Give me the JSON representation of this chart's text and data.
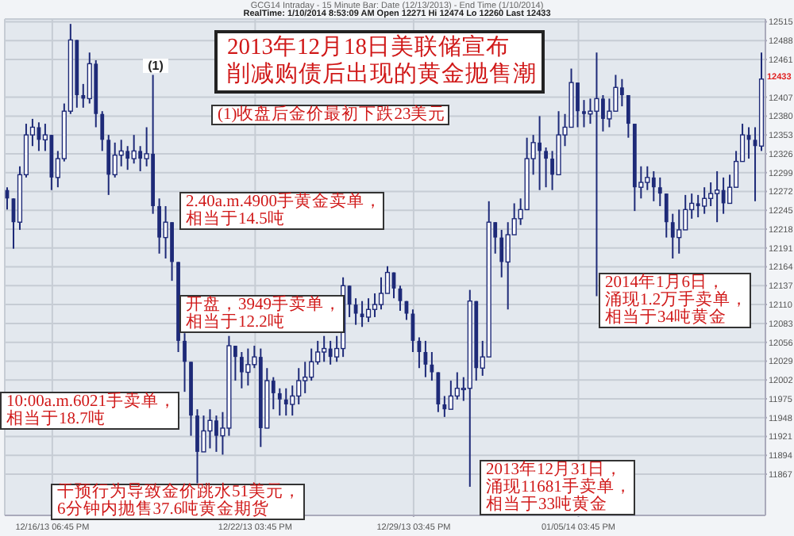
{
  "chart_data": {
    "type": "candlestick",
    "title": "2013年12月18日美联储宣布",
    "subtitle": "削减购债后出现的黄金抛售潮",
    "annotations": [
      "GCG14 Intraday - 15 Minute Bar: Date (12/13/2013) - End Time (1/10/2014)",
      "RealTime: 1/10/2014 8:53:09 AM Open 12271 Hi 12474 Lo 12260 Last 12433",
      {
        "text": "(1)",
        "y": 12439
      },
      "(1)收盘后金价最初下跌23美元",
      "2.40a.m.4900手黄金卖单，相当于14.5吨",
      "开盘，3949手卖单，相当于12.2吨",
      "10:00a.m.6021手卖单，相当于18.7吨",
      "干预行为导致金价跳水51美元，6分钟内抛售37.6吨黄金期货",
      "2013年12月31日，涌现11681手卖单，相当于33吨黄金",
      "2014年1月6日，涌现1.2万手卖单，相当于34吨黄金",
      {
        "text": "12433",
        "y": 12433
      }
    ],
    "color": "#1e2a78",
    "categories": [
      null,
      null,
      null,
      null,
      null,
      null,
      null,
      "12/16/13 06:45 PM",
      null,
      null,
      null,
      null,
      null,
      null,
      null,
      null,
      null,
      null,
      null,
      null,
      null,
      null,
      null,
      null,
      null,
      null,
      null,
      null,
      null,
      null,
      null,
      null,
      null,
      null,
      null,
      null,
      null,
      null,
      null,
      "12/22/13 03:45 PM",
      null,
      null,
      null,
      null,
      null,
      null,
      null,
      null,
      null,
      null,
      null,
      null,
      null,
      null,
      null,
      null,
      null,
      null,
      null,
      null,
      null,
      null,
      null,
      null,
      "12/29/13 03:45 PM",
      null,
      null,
      null,
      null,
      null,
      null,
      null,
      null,
      null,
      null,
      null,
      null,
      null,
      null,
      null,
      null,
      null,
      null,
      null,
      null,
      null,
      null,
      null,
      null,
      null,
      "01/05/14 03:45 PM",
      null,
      null,
      null,
      null,
      null,
      null,
      null,
      null,
      null,
      null,
      null,
      null,
      null,
      null,
      null,
      null,
      null,
      null,
      null,
      null,
      null,
      null,
      null,
      null,
      null,
      null,
      null,
      null,
      null
    ],
    "ohlc": [
      [
        12274,
        12278,
        12246,
        12262
      ],
      [
        12262,
        12262,
        12190,
        12228
      ],
      [
        12228,
        12308,
        12217,
        12296
      ],
      [
        12296,
        12369,
        12292,
        12353
      ],
      [
        12353,
        12376,
        12337,
        12364
      ],
      [
        12364,
        12371,
        12330,
        12346
      ],
      [
        12346,
        12369,
        12330,
        12353
      ],
      [
        12353,
        12353,
        12274,
        12292
      ],
      [
        12292,
        12330,
        12278,
        12319
      ],
      [
        12319,
        12398,
        12315,
        12387
      ],
      [
        12387,
        12512,
        12383,
        12489
      ],
      [
        12489,
        12489,
        12392,
        12410
      ],
      [
        12410,
        12426,
        12392,
        12405
      ],
      [
        12405,
        12471,
        12398,
        12455
      ],
      [
        12455,
        12460,
        12364,
        12383
      ],
      [
        12383,
        12387,
        12330,
        12346
      ],
      [
        12346,
        12353,
        12267,
        12296
      ],
      [
        12296,
        12342,
        12292,
        12324
      ],
      [
        12324,
        12346,
        12308,
        12330
      ],
      [
        12330,
        12337,
        12303,
        12319
      ],
      [
        12319,
        12353,
        12312,
        12330
      ],
      [
        12330,
        12337,
        12301,
        12319
      ],
      [
        12319,
        12364,
        12308,
        12326
      ],
      [
        12326,
        12439,
        12240,
        12251
      ],
      [
        12251,
        12262,
        12183,
        12206
      ],
      [
        12206,
        12251,
        12176,
        12228
      ],
      [
        12228,
        12228,
        12144,
        12171
      ],
      [
        12171,
        12171,
        12042,
        12058
      ],
      [
        12058,
        12069,
        11985,
        12028
      ],
      [
        12028,
        12028,
        11922,
        11951
      ],
      [
        11951,
        11960,
        11854,
        11899
      ],
      [
        11899,
        11951,
        11899,
        11929
      ],
      [
        11929,
        11960,
        11904,
        11944
      ],
      [
        11944,
        11951,
        11899,
        11922
      ],
      [
        11922,
        11956,
        11895,
        11933
      ],
      [
        11933,
        12065,
        11922,
        12051
      ],
      [
        12051,
        12051,
        12001,
        12035
      ],
      [
        12035,
        12042,
        11990,
        12013
      ],
      [
        12013,
        12047,
        11994,
        12024
      ],
      [
        12024,
        12051,
        12019,
        12035
      ],
      [
        12035,
        12047,
        11906,
        11933
      ],
      [
        11933,
        12019,
        11933,
        12001
      ],
      [
        12001,
        12006,
        11960,
        11983
      ],
      [
        11983,
        11990,
        11951,
        11974
      ],
      [
        11974,
        11990,
        11951,
        11967
      ],
      [
        11967,
        11994,
        11951,
        11979
      ],
      [
        11979,
        12019,
        11967,
        12001
      ],
      [
        12001,
        12028,
        11983,
        12006
      ],
      [
        12006,
        12047,
        12001,
        12028
      ],
      [
        12028,
        12058,
        12024,
        12042
      ],
      [
        12042,
        12065,
        12028,
        12047
      ],
      [
        12047,
        12058,
        12024,
        12035
      ],
      [
        12035,
        12065,
        12028,
        12047
      ],
      [
        12047,
        12149,
        12035,
        12137
      ],
      [
        12137,
        12137,
        12092,
        12110
      ],
      [
        12110,
        12119,
        12081,
        12097
      ],
      [
        12097,
        12115,
        12078,
        12092
      ],
      [
        12092,
        12119,
        12085,
        12103
      ],
      [
        12103,
        12126,
        12092,
        12110
      ],
      [
        12110,
        12149,
        12103,
        12126
      ],
      [
        12126,
        12165,
        12126,
        12156
      ],
      [
        12156,
        12156,
        12119,
        12133
      ],
      [
        12133,
        12137,
        12101,
        12115
      ],
      [
        12115,
        12115,
        12088,
        12097
      ],
      [
        12097,
        12103,
        12042,
        12058
      ],
      [
        12058,
        12063,
        12019,
        12042
      ],
      [
        12042,
        12058,
        12006,
        12024
      ],
      [
        12024,
        12042,
        12001,
        12013
      ],
      [
        12013,
        12013,
        11956,
        11967
      ],
      [
        11967,
        11979,
        11949,
        11960
      ],
      [
        11960,
        12001,
        11960,
        11979
      ],
      [
        11979,
        12013,
        11974,
        11990
      ],
      [
        11990,
        12006,
        11972,
        11990
      ],
      [
        11990,
        12131,
        11849,
        12115
      ],
      [
        12115,
        12115,
        12001,
        12019
      ],
      [
        12019,
        12058,
        12008,
        12035
      ],
      [
        12035,
        12258,
        12035,
        12228
      ],
      [
        12228,
        12228,
        12183,
        12206
      ],
      [
        12206,
        12217,
        12149,
        12171
      ],
      [
        12171,
        12228,
        12103,
        12210
      ],
      [
        12210,
        12255,
        12210,
        12233
      ],
      [
        12233,
        12262,
        12224,
        12246
      ],
      [
        12246,
        12349,
        12246,
        12319
      ],
      [
        12319,
        12353,
        12296,
        12342
      ],
      [
        12342,
        12380,
        12274,
        12330
      ],
      [
        12330,
        12335,
        12278,
        12319
      ],
      [
        12319,
        12330,
        12274,
        12296
      ],
      [
        12296,
        12387,
        12296,
        12353
      ],
      [
        12353,
        12383,
        12337,
        12364
      ],
      [
        12364,
        12448,
        12364,
        12428
      ],
      [
        12428,
        12428,
        12364,
        12387
      ],
      [
        12387,
        12403,
        12364,
        12383
      ],
      [
        12383,
        12405,
        12369,
        12387
      ],
      [
        12387,
        12471,
        12122,
        12405
      ],
      [
        12405,
        12410,
        12358,
        12376
      ],
      [
        12376,
        12405,
        12364,
        12387
      ],
      [
        12387,
        12439,
        12387,
        12421
      ],
      [
        12421,
        12433,
        12394,
        12410
      ],
      [
        12410,
        12410,
        12349,
        12369
      ],
      [
        12369,
        12369,
        12244,
        12278
      ],
      [
        12278,
        12308,
        12262,
        12285
      ],
      [
        12285,
        12308,
        12274,
        12292
      ],
      [
        12292,
        12301,
        12258,
        12278
      ],
      [
        12278,
        12292,
        12251,
        12269
      ],
      [
        12269,
        12269,
        12206,
        12228
      ],
      [
        12228,
        12240,
        12176,
        12206
      ],
      [
        12206,
        12246,
        12183,
        12217
      ],
      [
        12217,
        12267,
        12217,
        12246
      ],
      [
        12246,
        12269,
        12233,
        12255
      ],
      [
        12255,
        12267,
        12235,
        12251
      ],
      [
        12251,
        12278,
        12240,
        12262
      ],
      [
        12262,
        12285,
        12251,
        12269
      ],
      [
        12269,
        12301,
        12228,
        12274
      ],
      [
        12274,
        12292,
        12240,
        12255
      ],
      [
        12255,
        12296,
        12255,
        12278
      ],
      [
        12278,
        12330,
        12278,
        12315
      ],
      [
        12315,
        12369,
        12315,
        12353
      ],
      [
        12353,
        12364,
        12319,
        12346
      ],
      [
        12346,
        12364,
        12258,
        12337
      ],
      [
        12337,
        12471,
        12330,
        12433
      ]
    ],
    "ylim": [
      11808,
      12519
    ],
    "yticks": [
      11867,
      11894,
      11921,
      11948,
      11975,
      12002,
      12029,
      12056,
      12083,
      12110,
      12137,
      12164,
      12191,
      12218,
      12245,
      12272,
      12299,
      12326,
      12353,
      12380,
      12407,
      12461,
      12488,
      12515
    ],
    "grid": true
  }
}
